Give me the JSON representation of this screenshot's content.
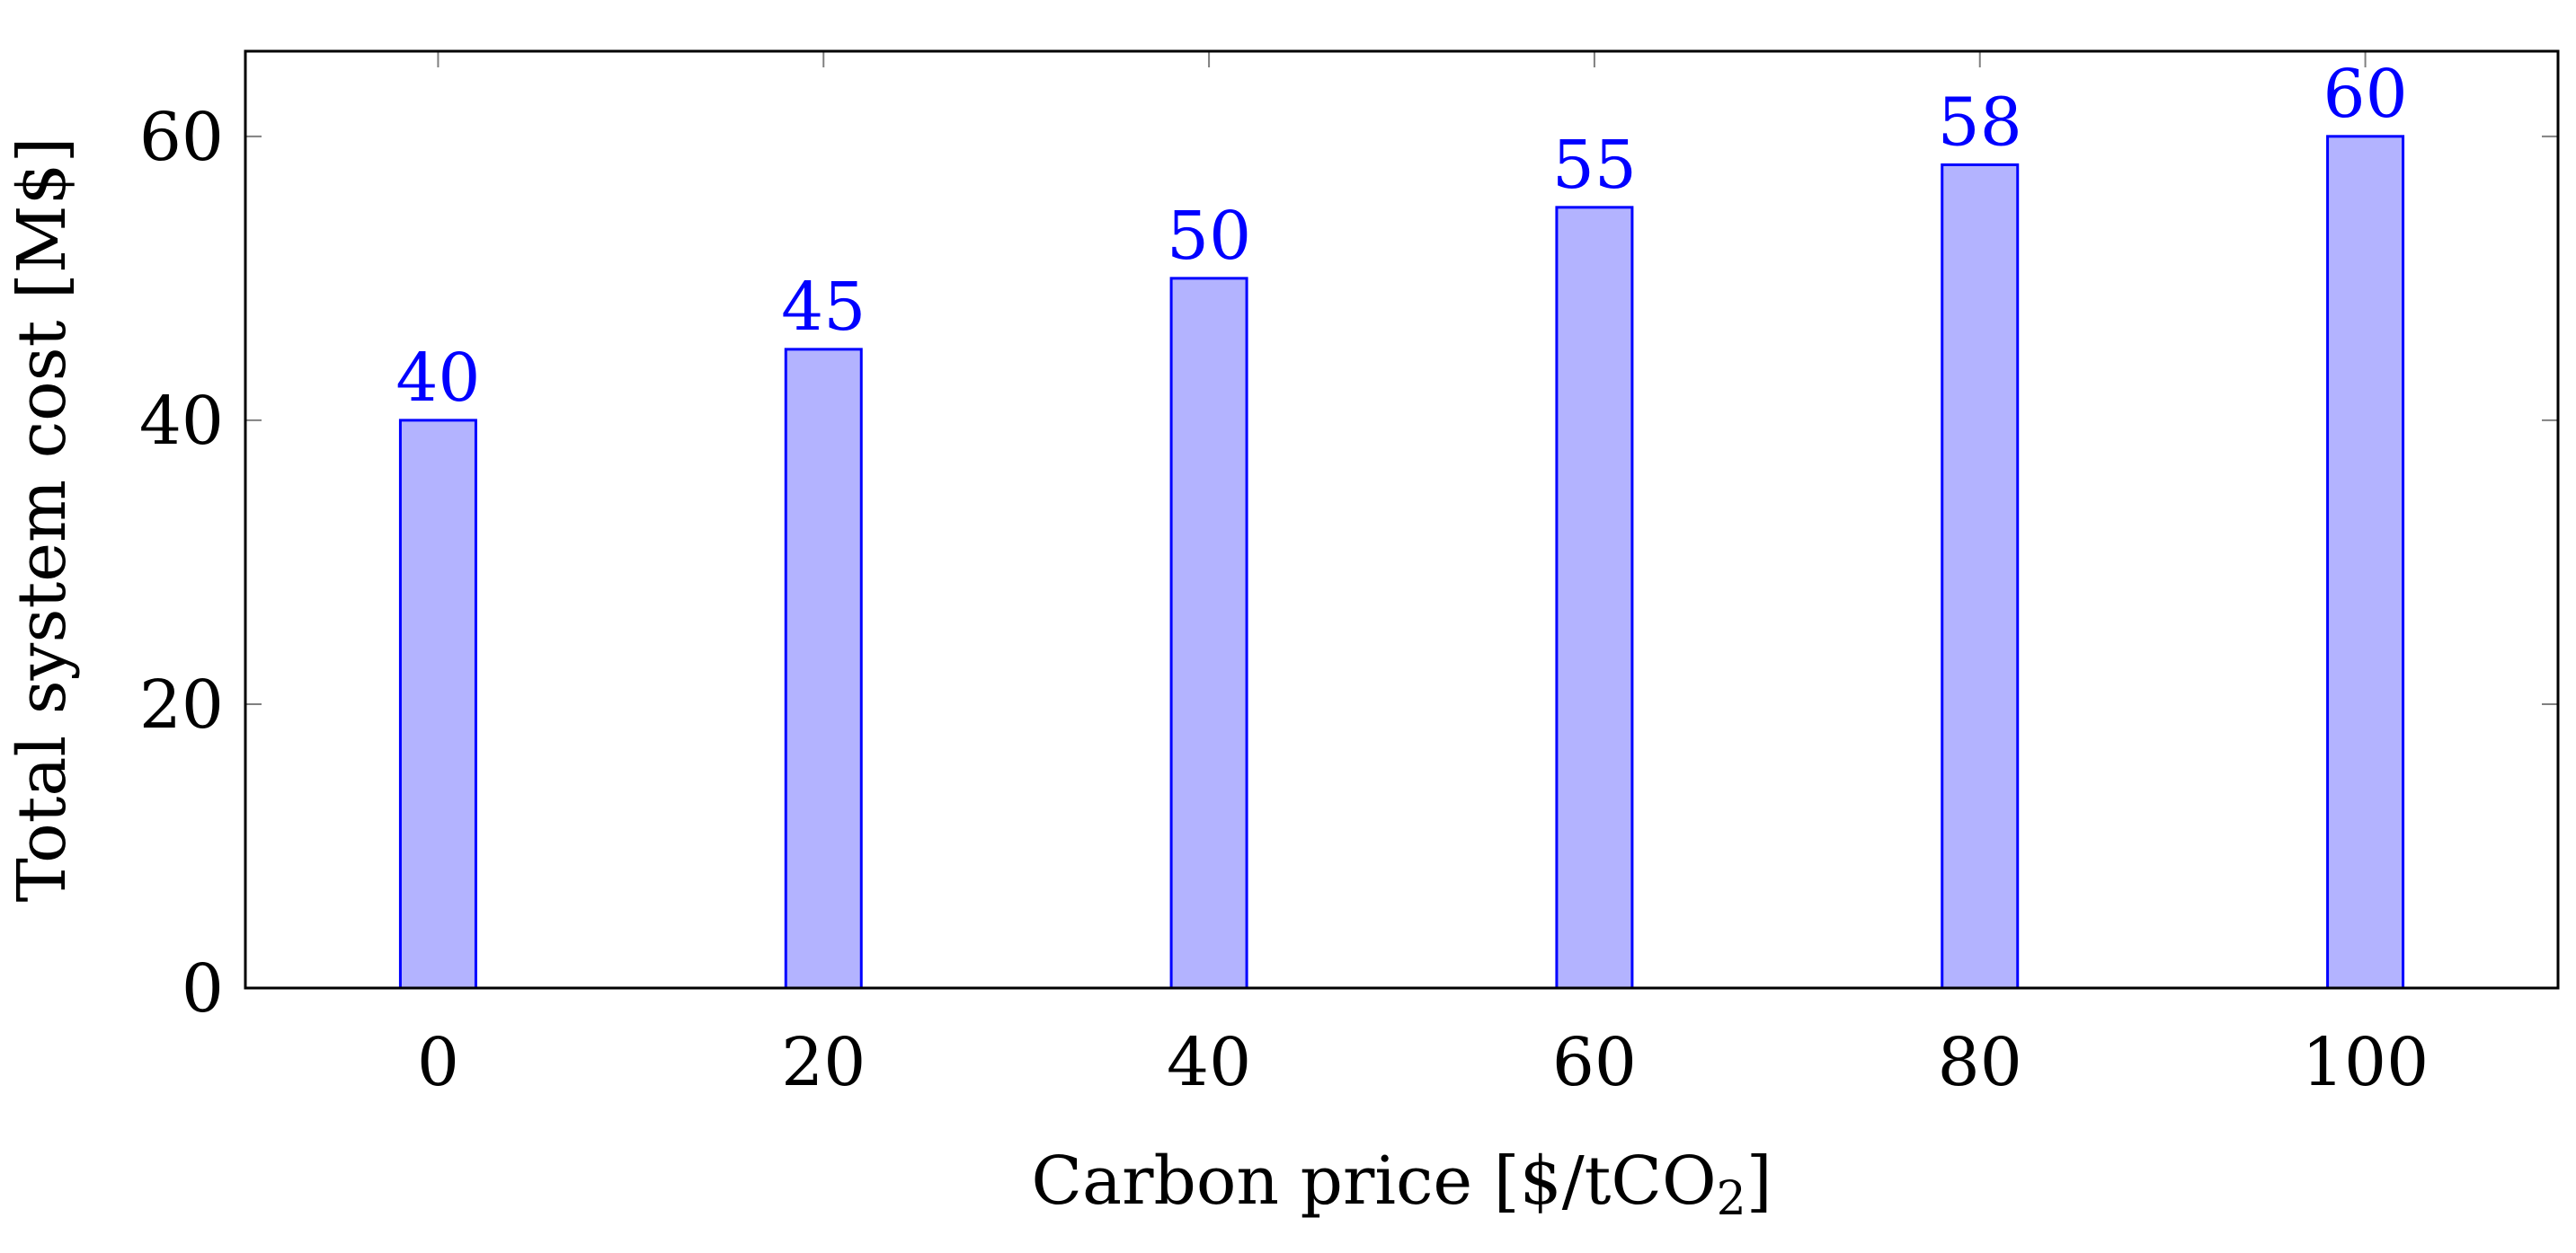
{
  "chart_data": {
    "type": "bar",
    "x": [
      0,
      20,
      40,
      60,
      80,
      100
    ],
    "values": [
      40,
      45,
      50,
      55,
      58,
      60
    ],
    "data_labels": [
      "40",
      "45",
      "50",
      "55",
      "58",
      "60"
    ],
    "xlabel": "Carbon price [$/tCO",
    "xlabel_subscript": "2",
    "xlabel_suffix": "]",
    "ylabel": "Total system cost [M$]",
    "xlim": [
      -10,
      110
    ],
    "ylim": [
      0,
      66
    ],
    "xticks": [
      0,
      20,
      40,
      60,
      80,
      100
    ],
    "xtick_labels": [
      "0",
      "20",
      "40",
      "60",
      "80",
      "100"
    ],
    "yticks": [
      0,
      20,
      40,
      60
    ],
    "ytick_labels": [
      "0",
      "20",
      "40",
      "60"
    ],
    "grid": false,
    "legend": "none",
    "colors": {
      "bar_fill": "#b3b3ff",
      "bar_stroke": "#0000ff",
      "data_label": "#0000ff",
      "axis": "#000000",
      "tick": "#808080"
    }
  }
}
